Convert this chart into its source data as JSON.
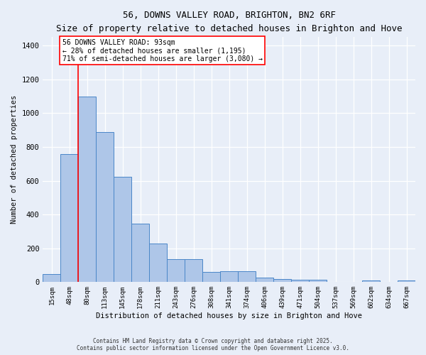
{
  "title": "56, DOWNS VALLEY ROAD, BRIGHTON, BN2 6RF",
  "subtitle": "Size of property relative to detached houses in Brighton and Hove",
  "xlabel": "Distribution of detached houses by size in Brighton and Hove",
  "ylabel": "Number of detached properties",
  "bar_labels": [
    "15sqm",
    "48sqm",
    "80sqm",
    "113sqm",
    "145sqm",
    "178sqm",
    "211sqm",
    "243sqm",
    "276sqm",
    "308sqm",
    "341sqm",
    "374sqm",
    "406sqm",
    "439sqm",
    "471sqm",
    "504sqm",
    "537sqm",
    "569sqm",
    "602sqm",
    "634sqm",
    "667sqm"
  ],
  "bar_values": [
    47,
    760,
    1100,
    890,
    625,
    345,
    228,
    135,
    135,
    60,
    65,
    65,
    25,
    18,
    15,
    13,
    0,
    0,
    10,
    0,
    10
  ],
  "bar_color": "#aec6e8",
  "bar_edge_color": "#4a86c8",
  "background_color": "#e8eef8",
  "grid_color_major": "#ffffff",
  "vline_color": "red",
  "vline_x_index": 2,
  "annotation_text": "56 DOWNS VALLEY ROAD: 93sqm\n← 28% of detached houses are smaller (1,195)\n71% of semi-detached houses are larger (3,080) →",
  "annotation_box_color": "white",
  "annotation_box_edge_color": "red",
  "ylim": [
    0,
    1450
  ],
  "yticks": [
    0,
    200,
    400,
    600,
    800,
    1000,
    1200,
    1400
  ],
  "footer_line1": "Contains HM Land Registry data © Crown copyright and database right 2025.",
  "footer_line2": "Contains public sector information licensed under the Open Government Licence v3.0."
}
